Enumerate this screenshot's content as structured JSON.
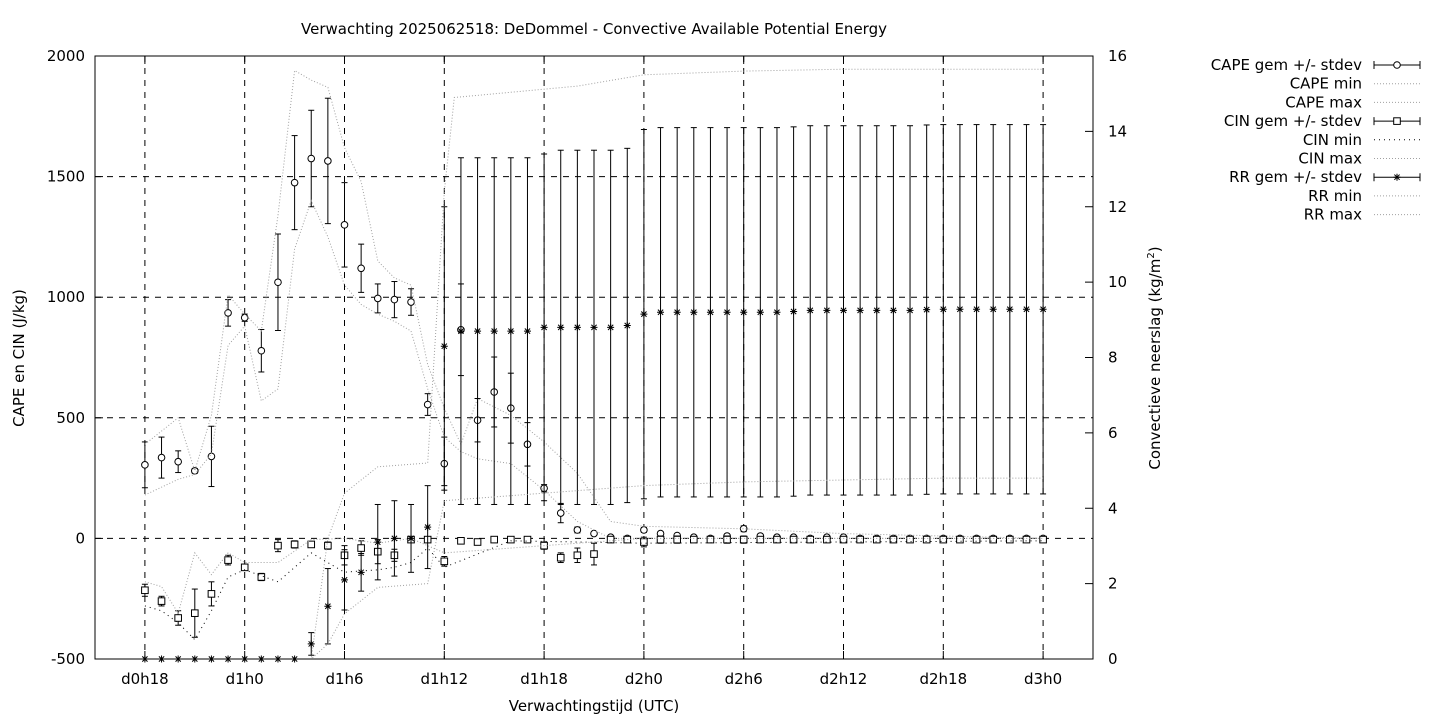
{
  "chart_data": {
    "type": "line",
    "title": "Verwachting 2025062518: DeDommel - Convective Available Potential Energy",
    "xlabel": "Verwachtingstijd (UTC)",
    "ylabel": "CAPE en CIN (J/kg)",
    "y2label_main": "Convectieve neerslag (kg/m",
    "y2label_sup": "2",
    "y2label_close": ")",
    "xlim": [
      15,
      75
    ],
    "ylim": [
      -500,
      2000
    ],
    "y2lim": [
      0,
      16
    ],
    "x_tick_values": [
      18,
      24,
      30,
      36,
      42,
      48,
      54,
      60,
      66,
      72
    ],
    "x_tick_labels": [
      "d0h18",
      "d1h0",
      "d1h6",
      "d1h12",
      "d1h18",
      "d2h0",
      "d2h6",
      "d2h12",
      "d2h18",
      "d3h0"
    ],
    "y_tick_values": [
      -500,
      0,
      500,
      1000,
      1500,
      2000
    ],
    "y_tick_labels": [
      "-500",
      "0",
      "500",
      "1000",
      "1500",
      "2000"
    ],
    "y2_tick_values": [
      0,
      2,
      4,
      6,
      8,
      10,
      12,
      14,
      16
    ],
    "y2_tick_labels": [
      "0",
      "2",
      "4",
      "6",
      "8",
      "10",
      "12",
      "14",
      "16"
    ],
    "grid": true,
    "legend_position": "outside-right",
    "legend": [
      {
        "label": "CAPE gem +/- stdev",
        "style": "errorbar-circle"
      },
      {
        "label": "CAPE min",
        "style": "dotted-gray"
      },
      {
        "label": "CAPE max",
        "style": "dotted-gray"
      },
      {
        "label": "CIN gem +/- stdev",
        "style": "errorbar-square"
      },
      {
        "label": "CIN min",
        "style": "dotted-black"
      },
      {
        "label": "CIN max",
        "style": "dotted-gray"
      },
      {
        "label": "RR gem +/- stdev",
        "style": "errorbar-star"
      },
      {
        "label": "RR min",
        "style": "dotted-gray"
      },
      {
        "label": "RR max",
        "style": "dotted-gray"
      }
    ],
    "series": [
      {
        "name": "CAPE gem +/- stdev",
        "axis": "y",
        "marker": "circle",
        "x": [
          18,
          19,
          20,
          21,
          22,
          23,
          24,
          25,
          26,
          27,
          28,
          29,
          30,
          31,
          32,
          33,
          34,
          35,
          36,
          37,
          38,
          39,
          40,
          41,
          42,
          43,
          44,
          45,
          46,
          47,
          48,
          49,
          50,
          51,
          52,
          53,
          54,
          55,
          56,
          57,
          58,
          59,
          60,
          61,
          62,
          63,
          64,
          65,
          66,
          67,
          68,
          69,
          70,
          71,
          72
        ],
        "mean": [
          305,
          335,
          318,
          280,
          340,
          935,
          915,
          778,
          1062,
          1475,
          1575,
          1565,
          1300,
          1120,
          995,
          990,
          980,
          555,
          310,
          865,
          490,
          607,
          540,
          390,
          208,
          105,
          35,
          20,
          5,
          0,
          35,
          20,
          12,
          5,
          0,
          10,
          40,
          10,
          5,
          5,
          0,
          5,
          5,
          0,
          0,
          0,
          0,
          0,
          0,
          0,
          0,
          0,
          0,
          0,
          0
        ],
        "stdev": [
          95,
          85,
          45,
          10,
          125,
          55,
          15,
          88,
          200,
          195,
          200,
          260,
          175,
          100,
          60,
          75,
          55,
          45,
          110,
          190,
          90,
          145,
          145,
          90,
          15,
          40,
          12,
          5,
          5,
          0,
          10,
          8,
          6,
          3,
          0,
          6,
          12,
          5,
          3,
          3,
          0,
          3,
          3,
          0,
          0,
          0,
          0,
          0,
          0,
          0,
          0,
          0,
          0,
          0,
          0
        ]
      },
      {
        "name": "CAPE min",
        "axis": "y",
        "x": [
          18,
          20,
          21,
          22,
          23,
          24,
          25,
          26,
          27,
          28,
          29,
          30,
          31,
          32,
          33,
          34,
          35,
          36,
          37,
          38,
          40,
          42,
          44,
          46,
          48,
          54,
          60,
          66,
          72
        ],
        "values": [
          180,
          245,
          265,
          350,
          800,
          880,
          570,
          620,
          1200,
          1400,
          1250,
          1050,
          970,
          930,
          900,
          860,
          620,
          420,
          360,
          330,
          310,
          200,
          70,
          0,
          0,
          0,
          0,
          0,
          0
        ]
      },
      {
        "name": "CAPE max",
        "axis": "y",
        "x": [
          18,
          20,
          21,
          22,
          23,
          24,
          25,
          26,
          27,
          28,
          29,
          30,
          31,
          32,
          33,
          34,
          35,
          36,
          37,
          38,
          40,
          42,
          44,
          46,
          48,
          54,
          60,
          66,
          72
        ],
        "values": [
          390,
          500,
          280,
          510,
          1010,
          930,
          860,
          1340,
          1940,
          1900,
          1870,
          1620,
          1480,
          1150,
          1080,
          1050,
          720,
          540,
          390,
          580,
          510,
          400,
          270,
          70,
          50,
          40,
          20,
          10,
          0
        ]
      },
      {
        "name": "CIN gem +/- stdev",
        "axis": "y",
        "marker": "square",
        "x": [
          18,
          19,
          20,
          21,
          22,
          23,
          24,
          25,
          26,
          27,
          28,
          29,
          30,
          31,
          32,
          33,
          34,
          35,
          36,
          37,
          38,
          39,
          40,
          41,
          42,
          43,
          44,
          45,
          46,
          47,
          48,
          49,
          50,
          51,
          52,
          53,
          54,
          55,
          56,
          57,
          58,
          59,
          60,
          61,
          62,
          63,
          64,
          65,
          66,
          67,
          68,
          69,
          70,
          71,
          72
        ],
        "mean": [
          -215,
          -260,
          -330,
          -310,
          -230,
          -90,
          -120,
          -160,
          -30,
          -25,
          -25,
          -30,
          -70,
          -40,
          -55,
          -70,
          -5,
          -5,
          -95,
          -10,
          -15,
          -5,
          -5,
          -5,
          -30,
          -80,
          -70,
          -65,
          -5,
          -5,
          -15,
          -5,
          -5,
          -5,
          -5,
          -5,
          -5,
          -5,
          -5,
          -5,
          -5,
          -5,
          -5,
          -5,
          -5,
          -5,
          -5,
          -5,
          -5,
          -5,
          -5,
          -5,
          -5,
          -5,
          -5
        ],
        "stdev": [
          25,
          20,
          30,
          100,
          50,
          20,
          5,
          15,
          25,
          15,
          10,
          15,
          40,
          30,
          50,
          25,
          10,
          10,
          20,
          3,
          3,
          3,
          3,
          3,
          15,
          20,
          30,
          45,
          10,
          5,
          20,
          15,
          15,
          5,
          5,
          15,
          15,
          5,
          5,
          5,
          3,
          3,
          3,
          3,
          3,
          3,
          3,
          3,
          3,
          3,
          3,
          3,
          3,
          3,
          3
        ]
      },
      {
        "name": "CIN min",
        "axis": "y",
        "x": [
          18,
          19,
          20,
          21,
          22,
          23,
          24,
          26,
          28,
          30,
          32,
          33,
          34,
          35,
          36,
          40,
          48,
          72
        ],
        "values": [
          -280,
          -300,
          -350,
          -420,
          -300,
          -160,
          -130,
          -180,
          -60,
          -140,
          -130,
          -120,
          -100,
          -40,
          -120,
          -10,
          -20,
          -10
        ]
      },
      {
        "name": "CIN max",
        "axis": "y",
        "x": [
          18,
          19,
          20,
          21,
          22,
          23,
          24,
          26,
          28,
          30,
          32,
          34,
          36,
          48,
          72
        ],
        "values": [
          -180,
          -200,
          -310,
          -60,
          -150,
          -60,
          -100,
          -100,
          -5,
          0,
          -20,
          0,
          -60,
          0,
          0
        ]
      },
      {
        "name": "RR gem +/- stdev",
        "axis": "y2",
        "marker": "star",
        "x": [
          18,
          19,
          20,
          21,
          22,
          23,
          24,
          25,
          26,
          27,
          28,
          29,
          30,
          31,
          32,
          33,
          34,
          35,
          36,
          37,
          38,
          39,
          40,
          41,
          42,
          43,
          44,
          45,
          46,
          47,
          48,
          49,
          50,
          51,
          52,
          53,
          54,
          55,
          56,
          57,
          58,
          59,
          60,
          61,
          62,
          63,
          64,
          65,
          66,
          67,
          68,
          69,
          70,
          71,
          72
        ],
        "mean": [
          0,
          0,
          0,
          0,
          0,
          0,
          0,
          0,
          0,
          0,
          0.4,
          1.4,
          2.1,
          2.3,
          3.1,
          3.2,
          3.2,
          3.5,
          8.3,
          8.7,
          8.7,
          8.7,
          8.7,
          8.7,
          8.8,
          8.8,
          8.8,
          8.8,
          8.8,
          8.85,
          9.15,
          9.2,
          9.2,
          9.2,
          9.2,
          9.2,
          9.2,
          9.2,
          9.2,
          9.22,
          9.25,
          9.25,
          9.25,
          9.25,
          9.25,
          9.25,
          9.25,
          9.27,
          9.28,
          9.28,
          9.28,
          9.28,
          9.28,
          9.28,
          9.28
        ],
        "stdev": [
          0,
          0,
          0,
          0,
          0,
          0,
          0,
          0,
          0,
          0,
          0.3,
          1.0,
          0.8,
          0.5,
          1.0,
          1.0,
          0.9,
          1.1,
          3.7,
          4.6,
          4.6,
          4.6,
          4.6,
          4.6,
          4.6,
          4.7,
          4.7,
          4.7,
          4.7,
          4.7,
          4.9,
          4.9,
          4.9,
          4.9,
          4.9,
          4.9,
          4.9,
          4.9,
          4.9,
          4.9,
          4.9,
          4.9,
          4.9,
          4.9,
          4.9,
          4.9,
          4.9,
          4.9,
          4.9,
          4.9,
          4.9,
          4.9,
          4.9,
          4.9,
          4.9
        ]
      },
      {
        "name": "RR min",
        "axis": "y2",
        "x": [
          18,
          28,
          29,
          30,
          32,
          35,
          36,
          48,
          54,
          60,
          66,
          72
        ],
        "values": [
          0,
          0,
          0.4,
          1.2,
          1.9,
          2.0,
          4.2,
          4.6,
          4.7,
          4.75,
          4.8,
          4.8
        ]
      },
      {
        "name": "RR max",
        "axis": "y2",
        "x": [
          18,
          26,
          28,
          29,
          30,
          32,
          35,
          36,
          36.6,
          44,
          48,
          54,
          60,
          66,
          72
        ],
        "values": [
          0,
          0,
          0,
          3.2,
          4.4,
          5.1,
          5.2,
          12.4,
          14.9,
          15.2,
          15.5,
          15.6,
          15.65,
          15.65,
          15.65
        ]
      }
    ]
  },
  "colors": {
    "axis": "#000000",
    "grid": "#000000",
    "minmax": "#a0a0a0",
    "cinmin": "#000000"
  }
}
